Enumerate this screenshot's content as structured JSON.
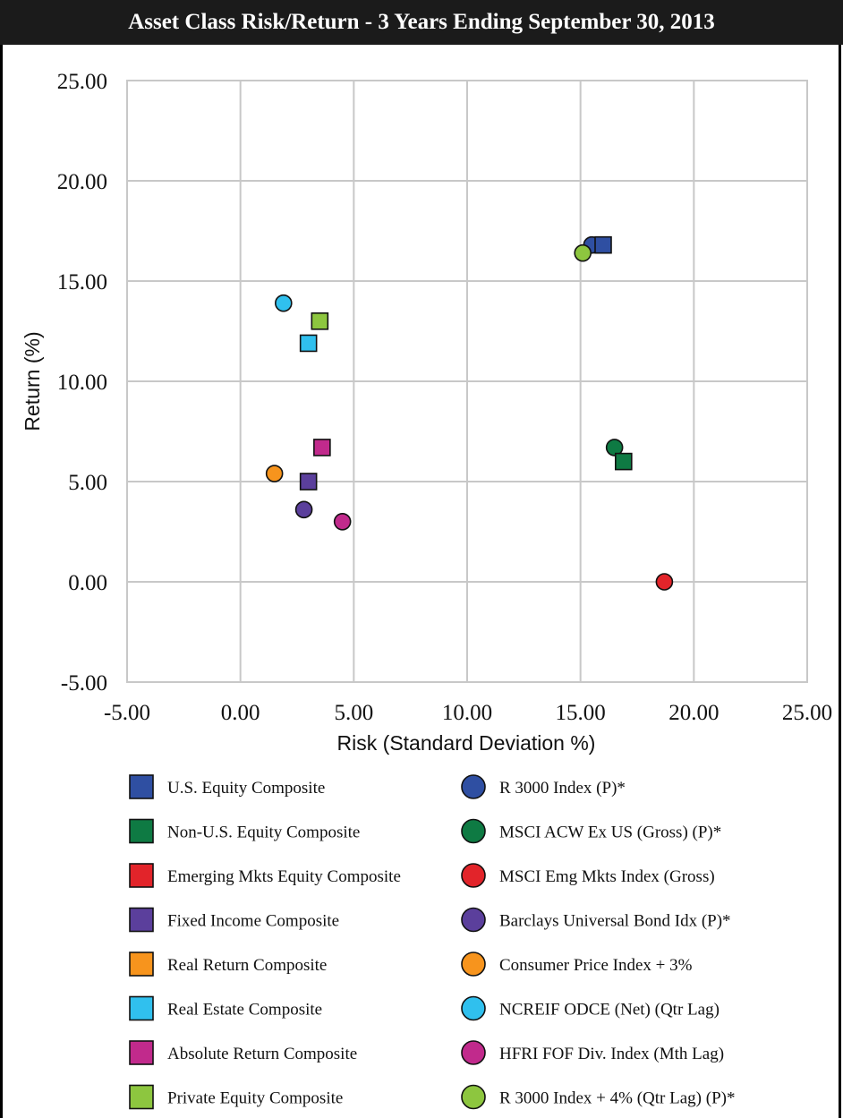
{
  "chart_data": {
    "type": "scatter",
    "title": "Asset Class Risk/Return - 3 Years Ending September 30, 2013",
    "xlabel": "Risk (Standard Deviation %)",
    "ylabel": "Return (%)",
    "xlim": [
      -5,
      25
    ],
    "ylim": [
      -5,
      25
    ],
    "xticks": [
      "-5.00",
      "0.00",
      "5.00",
      "10.00",
      "15.00",
      "20.00",
      "25.00"
    ],
    "yticks": [
      "25.00",
      "20.00",
      "15.00",
      "10.00",
      "5.00",
      "0.00",
      "-5.00"
    ],
    "grid": true,
    "legend_position": "bottom",
    "series": [
      {
        "name": "U.S. Equity Composite",
        "marker": "square",
        "color": "#2f4fa2",
        "x": 16.0,
        "y": 16.8
      },
      {
        "name": "Non-U.S. Equity Composite",
        "marker": "square",
        "color": "#0e7a43",
        "x": 16.9,
        "y": 6.0
      },
      {
        "name": "Emerging Mkts Equity Composite",
        "marker": "square",
        "color": "#e2242a",
        "x": null,
        "y": null
      },
      {
        "name": "Fixed Income Composite",
        "marker": "square",
        "color": "#5b3f9c",
        "x": 3.0,
        "y": 5.0
      },
      {
        "name": "Real Return Composite",
        "marker": "square",
        "color": "#f7941d",
        "x": null,
        "y": null
      },
      {
        "name": "Real Estate Composite",
        "marker": "square",
        "color": "#30c0ee",
        "x": 3.0,
        "y": 11.9
      },
      {
        "name": "Absolute Return Composite",
        "marker": "square",
        "color": "#c12a8c",
        "x": 3.6,
        "y": 6.7
      },
      {
        "name": "Private Equity Composite",
        "marker": "square",
        "color": "#8dc63f",
        "x": 3.5,
        "y": 13.0
      },
      {
        "name": "R 3000 Index (P)*",
        "marker": "circle",
        "color": "#2f4fa2",
        "x": 15.5,
        "y": 16.8
      },
      {
        "name": "MSCI ACW Ex US (Gross) (P)*",
        "marker": "circle",
        "color": "#0e7a43",
        "x": 16.5,
        "y": 6.7
      },
      {
        "name": "MSCI Emg Mkts Index (Gross)",
        "marker": "circle",
        "color": "#e2242a",
        "x": 18.7,
        "y": 0.0
      },
      {
        "name": "Barclays Universal Bond Idx (P)*",
        "marker": "circle",
        "color": "#5b3f9c",
        "x": 2.8,
        "y": 3.6
      },
      {
        "name": "Consumer Price Index + 3%",
        "marker": "circle",
        "color": "#f7941d",
        "x": 1.5,
        "y": 5.4
      },
      {
        "name": "NCREIF ODCE (Net) (Qtr Lag)",
        "marker": "circle",
        "color": "#30c0ee",
        "x": 1.9,
        "y": 13.9
      },
      {
        "name": "HFRI FOF Div. Index (Mth Lag)",
        "marker": "circle",
        "color": "#c12a8c",
        "x": 4.5,
        "y": 3.0
      },
      {
        "name": "R 3000 Index + 4% (Qtr Lag) (P)*",
        "marker": "circle",
        "color": "#8dc63f",
        "x": 15.1,
        "y": 16.4
      }
    ]
  }
}
